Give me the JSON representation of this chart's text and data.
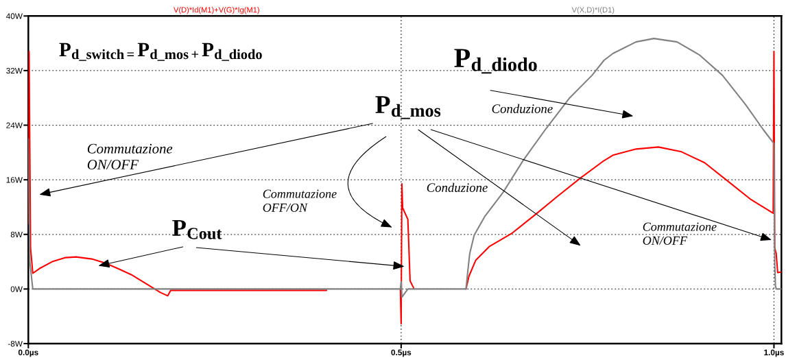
{
  "chart_data": {
    "type": "line",
    "annotations": [
      "P$_{d_switch=}$P$_{d_mos+}$P$_{d_diodo}$",
      "P$_{d_mos}$",
      "P$_{d_diodo}$",
      {
        "text": "P$_{Cout}$",
        "x": 0.094,
        "y": 3.4
      },
      "Commutazione\nON/OFF",
      "Commutazione\nOFF/ON",
      "Conduzione",
      "Conduzione",
      "Commutazione\nON/OFF"
    ],
    "series": [
      {
        "name": "V(D)*Id(M1)+V(G)*Ig(M1)",
        "color": "#ff0000",
        "x": [
          0,
          0.001,
          0.003,
          0.006,
          0.015,
          0.032,
          0.05,
          0.064,
          0.085,
          0.103,
          0.12,
          0.138,
          0.156,
          0.168,
          0.177,
          0.187,
          0.191,
          0.4,
          0.45,
          0.499,
          0.5,
          0.501,
          0.502,
          0.509,
          0.512,
          0.517,
          0.55,
          0.587,
          0.591,
          0.6,
          0.618,
          0.649,
          0.68,
          0.71,
          0.741,
          0.772,
          0.784,
          0.815,
          0.845,
          0.876,
          0.907,
          0.937,
          0.968,
          0.999,
          1.0,
          1.001,
          1.003,
          1.005,
          1.01
        ],
        "values": [
          9.6,
          34.8,
          6.0,
          2.3,
          3.0,
          4.0,
          4.6,
          4.7,
          4.4,
          3.8,
          3.0,
          2.1,
          0.9,
          0.1,
          -0.5,
          -1.0,
          -0.2,
          -0.2,
          null,
          0,
          -5.1,
          15.4,
          11.9,
          10.2,
          1.2,
          0.1,
          null,
          0,
          1.9,
          4.2,
          6.2,
          8.2,
          10.9,
          13.6,
          16.3,
          18.8,
          19.6,
          20.5,
          20.8,
          20.1,
          18.5,
          15.9,
          13.2,
          11.1,
          34.8,
          6.0,
          5.2,
          2.4,
          2.5
        ]
      },
      {
        "name": "V(X,D)*I(D1)",
        "color": "#808080",
        "x": [
          0,
          0.002,
          0.006,
          0.499,
          0.5,
          0.501,
          0.509,
          0.587,
          0.589,
          0.592,
          0.598,
          0.612,
          0.637,
          0.664,
          0.695,
          0.726,
          0.756,
          0.772,
          0.784,
          0.815,
          0.839,
          0.87,
          0.9,
          0.931,
          0.962,
          0.986,
          1.0,
          1.001,
          1.002,
          1.003,
          1.01
        ],
        "values": [
          22.0,
          4.0,
          0,
          0,
          1.1,
          -1.2,
          0,
          0,
          2.2,
          5.2,
          7.9,
          10.6,
          14.2,
          18.9,
          23.6,
          28.0,
          31.3,
          33.5,
          34.5,
          36.2,
          36.7,
          36.2,
          34.3,
          31.3,
          27.0,
          23.3,
          21.3,
          4.0,
          0.5,
          0,
          0
        ]
      }
    ],
    "xlim": [
      0,
      1.01
    ],
    "xticks": [
      {
        "value": 0,
        "label": "0.0µs"
      },
      {
        "value": 0.5,
        "label": "0.5µs"
      },
      {
        "value": 1.0,
        "label": "1.0µs"
      }
    ],
    "ylim": [
      -8,
      40
    ],
    "yticks": [
      {
        "value": -8,
        "label": "-8W"
      },
      {
        "value": 0,
        "label": "0W"
      },
      {
        "value": 8,
        "label": "8W"
      },
      {
        "value": 16,
        "label": "16W"
      },
      {
        "value": 24,
        "label": "24W"
      },
      {
        "value": 32,
        "label": "32W"
      },
      {
        "value": 40,
        "label": "40W"
      }
    ],
    "grid": true,
    "legend": "top"
  }
}
